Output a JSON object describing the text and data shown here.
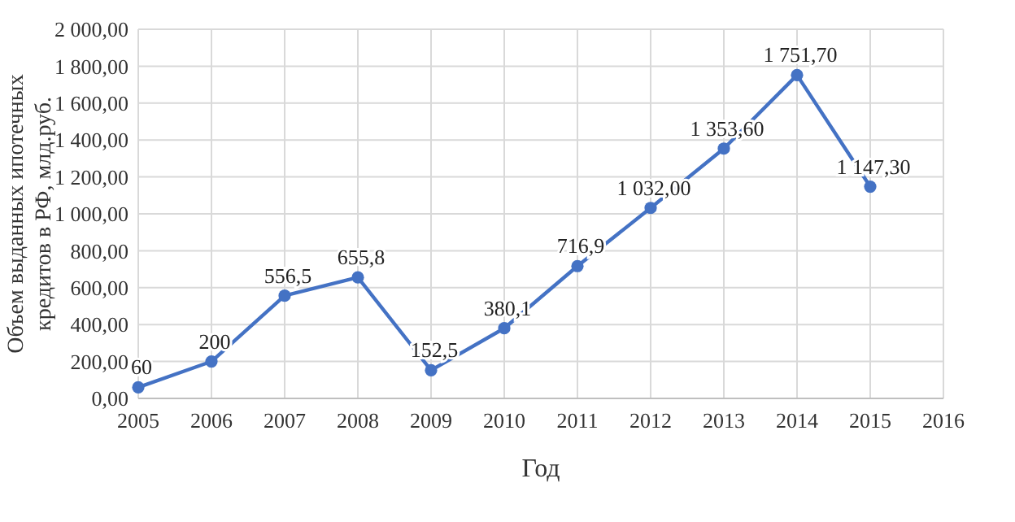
{
  "chart_data": {
    "type": "line",
    "xlabel": "Год",
    "ylabel": "Объем выданных ипотечных кредитов в РФ, млд.руб.",
    "x": [
      2005,
      2006,
      2007,
      2008,
      2009,
      2010,
      2011,
      2012,
      2013,
      2014,
      2015
    ],
    "series": [
      {
        "color": "#4472c4",
        "values": [
          60,
          200,
          556.5,
          655.8,
          152.5,
          380.1,
          716.9,
          1032,
          1353.6,
          1751.7,
          1147.3
        ],
        "value_labels": [
          "60",
          "200",
          "556,5",
          "655,8",
          "152,5",
          "380,1",
          "716,9",
          "1 032,00",
          "1 353,60",
          "1 751,70",
          "1 147,30"
        ]
      }
    ],
    "xlim": [
      2005,
      2016
    ],
    "xticks": [
      2005,
      2006,
      2007,
      2008,
      2009,
      2010,
      2011,
      2012,
      2013,
      2014,
      2015,
      2016
    ],
    "ylim": [
      0,
      2000
    ],
    "yticks": [
      {
        "value": 0,
        "label": "0,00"
      },
      {
        "value": 200,
        "label": "200,00"
      },
      {
        "value": 400,
        "label": "400,00"
      },
      {
        "value": 600,
        "label": "600,00"
      },
      {
        "value": 800,
        "label": "800,00"
      },
      {
        "value": 1000,
        "label": "1 000,00"
      },
      {
        "value": 1200,
        "label": "1 200,00"
      },
      {
        "value": 1400,
        "label": "1 400,00"
      },
      {
        "value": 1600,
        "label": "1 600,00"
      },
      {
        "value": 1800,
        "label": "1 800,00"
      },
      {
        "value": 2000,
        "label": "2 000,00"
      }
    ],
    "grid": true,
    "marker": "circle",
    "line_style": "solid"
  }
}
